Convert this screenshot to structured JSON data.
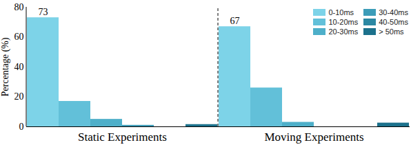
{
  "chart_data": {
    "type": "bar",
    "categories": [
      "Static Experiments",
      "Moving Experiments"
    ],
    "series": [
      {
        "name": "0-10ms",
        "color": "#7dd3e8",
        "values": [
          73,
          67
        ]
      },
      {
        "name": "10-20ms",
        "color": "#62c0d9",
        "values": [
          17,
          26
        ]
      },
      {
        "name": "20-30ms",
        "color": "#4eafc9",
        "values": [
          5,
          3
        ]
      },
      {
        "name": "30-40ms",
        "color": "#3c9cb8",
        "values": [
          1,
          0
        ]
      },
      {
        "name": "40-50ms",
        "color": "#2c88a3",
        "values": [
          0,
          0
        ]
      },
      {
        "name": "> 50ms",
        "color": "#1c718c",
        "values": [
          1.5,
          2.5
        ]
      }
    ],
    "ylabel": "Percentage (%)",
    "ylim": [
      0,
      80
    ],
    "yticks": [
      0,
      20,
      40,
      60,
      80
    ],
    "legend": "upper right",
    "annotations": [
      {
        "text": "73",
        "category": "Static Experiments",
        "series": "0-10ms"
      },
      {
        "text": "67",
        "category": "Moving Experiments",
        "series": "0-10ms"
      }
    ]
  }
}
